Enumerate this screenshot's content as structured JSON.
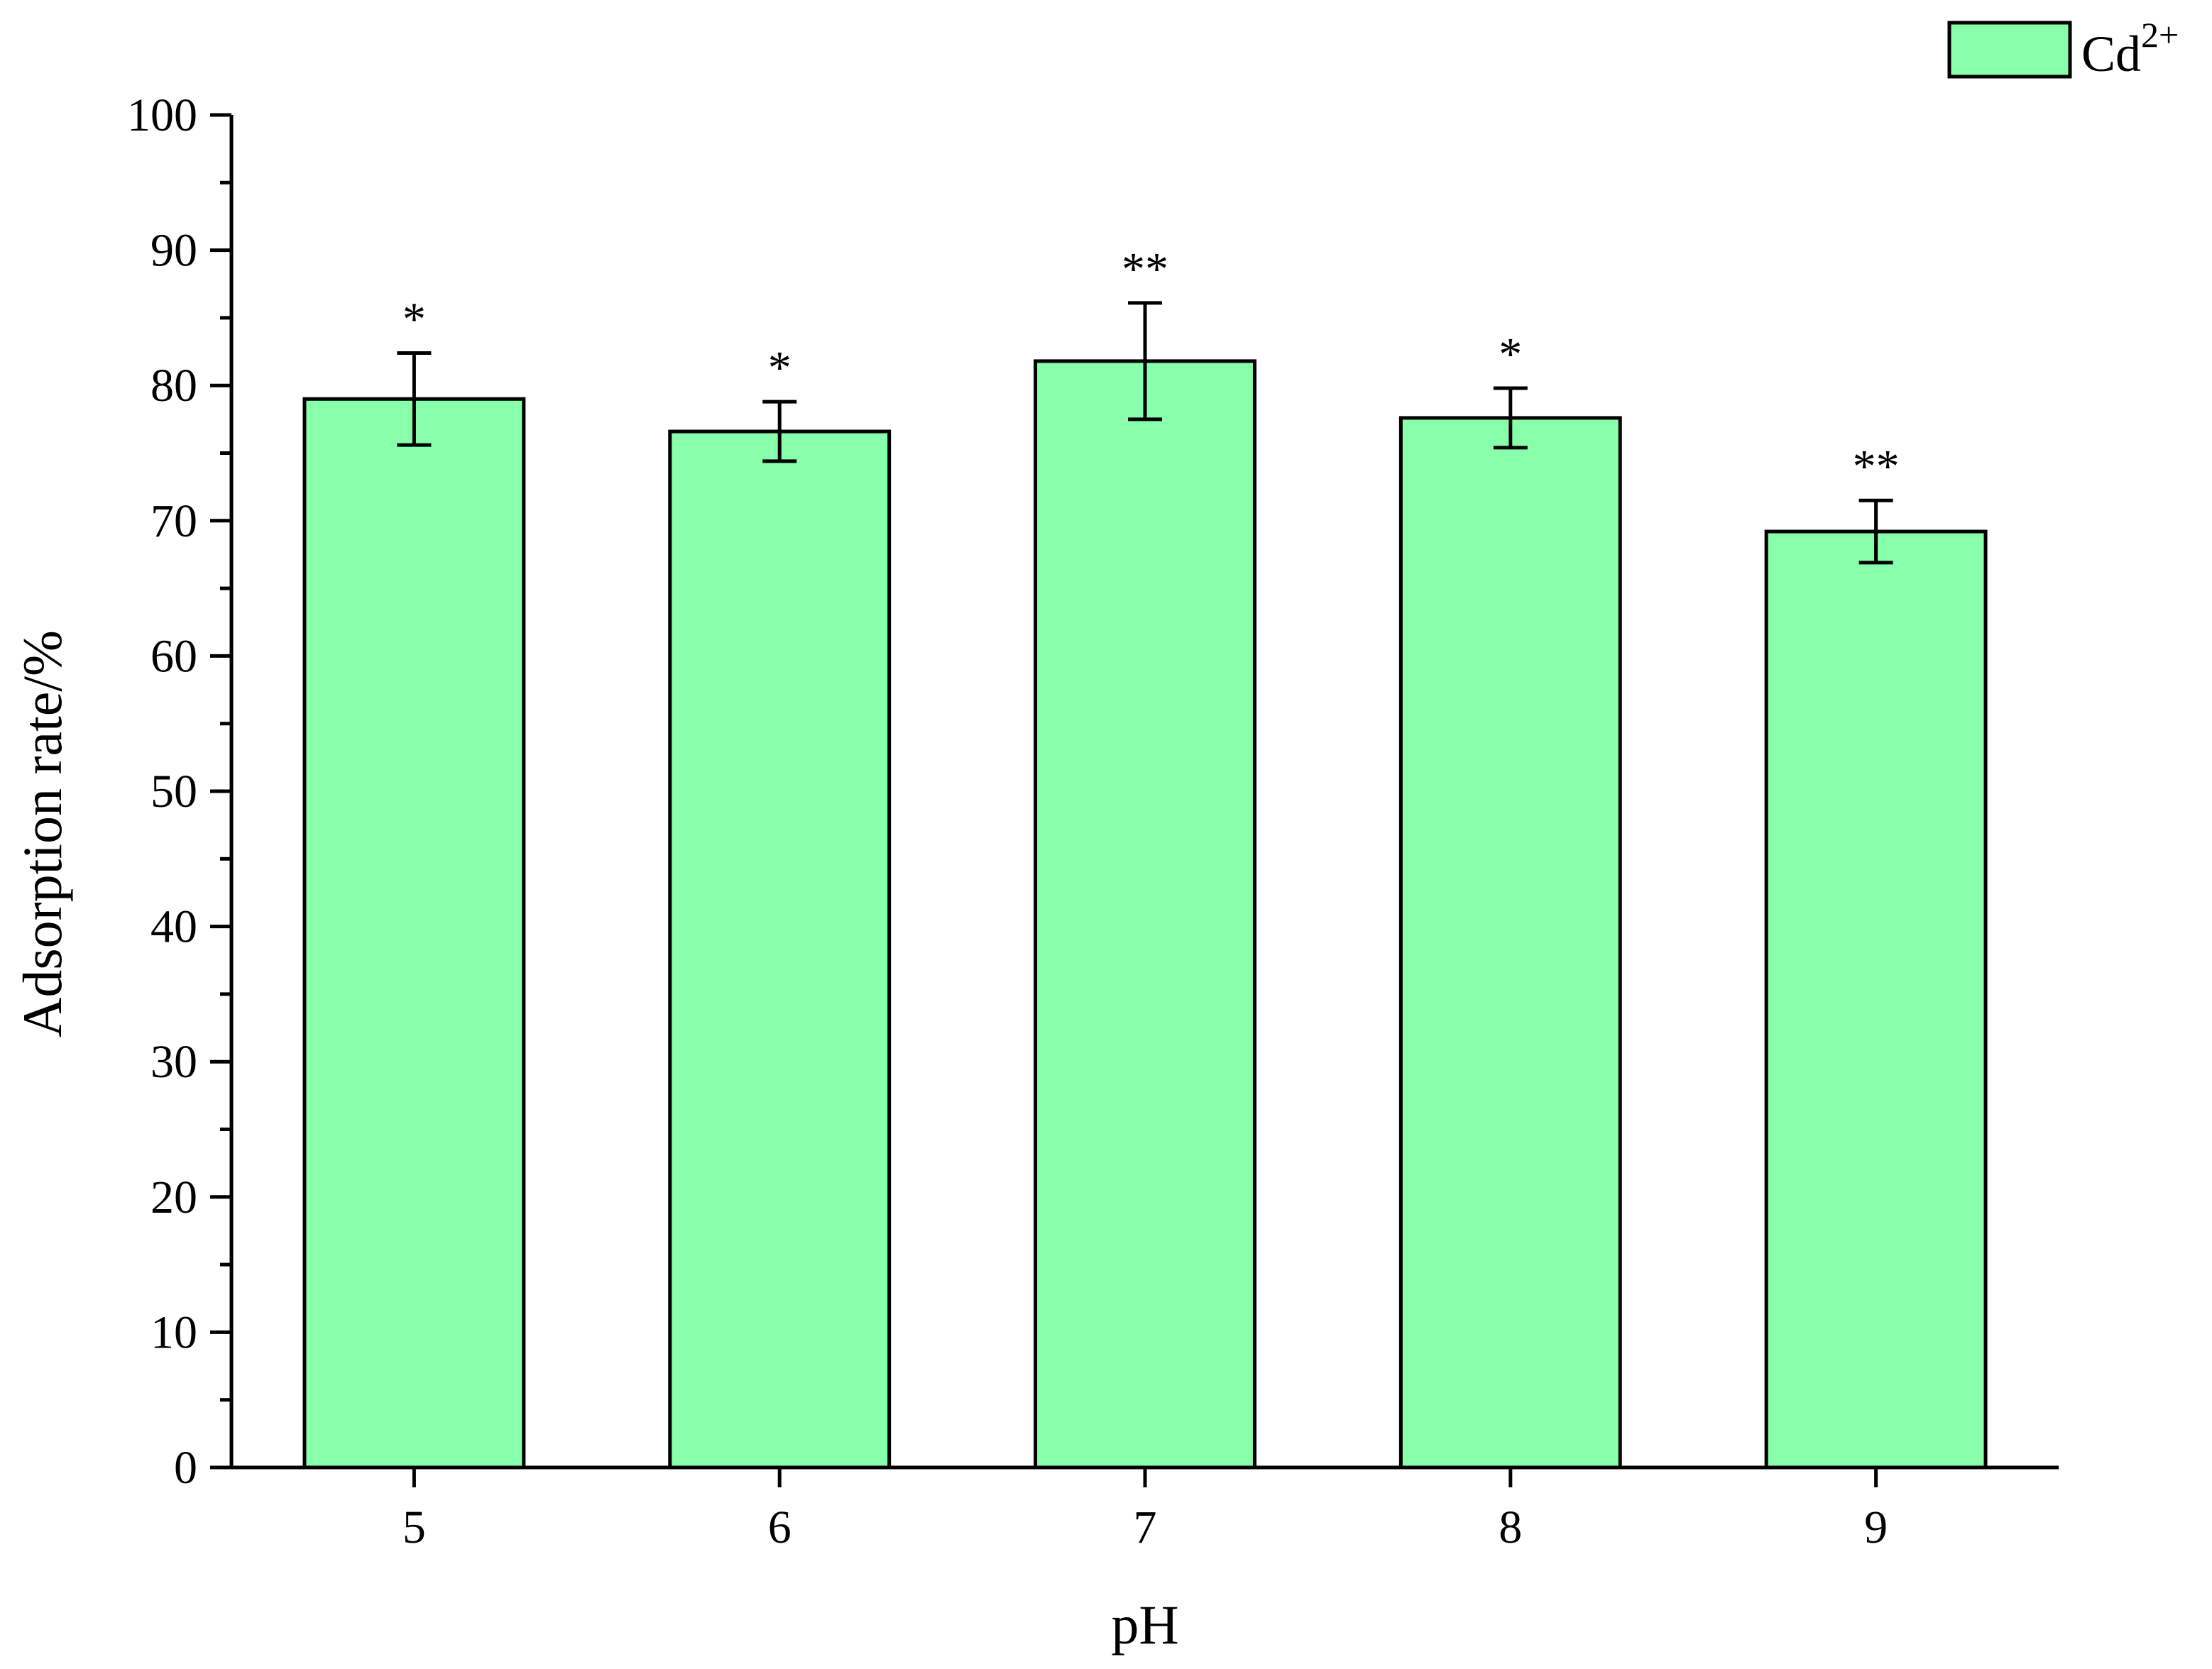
{
  "chart_data": {
    "type": "bar",
    "categories": [
      "5",
      "6",
      "7",
      "8",
      "9"
    ],
    "series": [
      {
        "name": "Cd2+",
        "values": [
          79.0,
          76.6,
          81.8,
          77.6,
          69.2
        ],
        "errors": [
          3.4,
          2.2,
          4.3,
          2.2,
          2.3
        ],
        "color": "#88ffaa"
      }
    ],
    "significance": [
      "*",
      "*",
      "**",
      "*",
      "**"
    ],
    "xlabel": "pH",
    "ylabel": "Adsorption rate/%",
    "ylim": [
      0,
      100
    ],
    "yticks": [
      0,
      10,
      20,
      30,
      40,
      50,
      60,
      70,
      80,
      90,
      100
    ],
    "legend": {
      "label_base": "Cd",
      "label_sup": "2+",
      "position": "top-right"
    },
    "grid": false
  }
}
